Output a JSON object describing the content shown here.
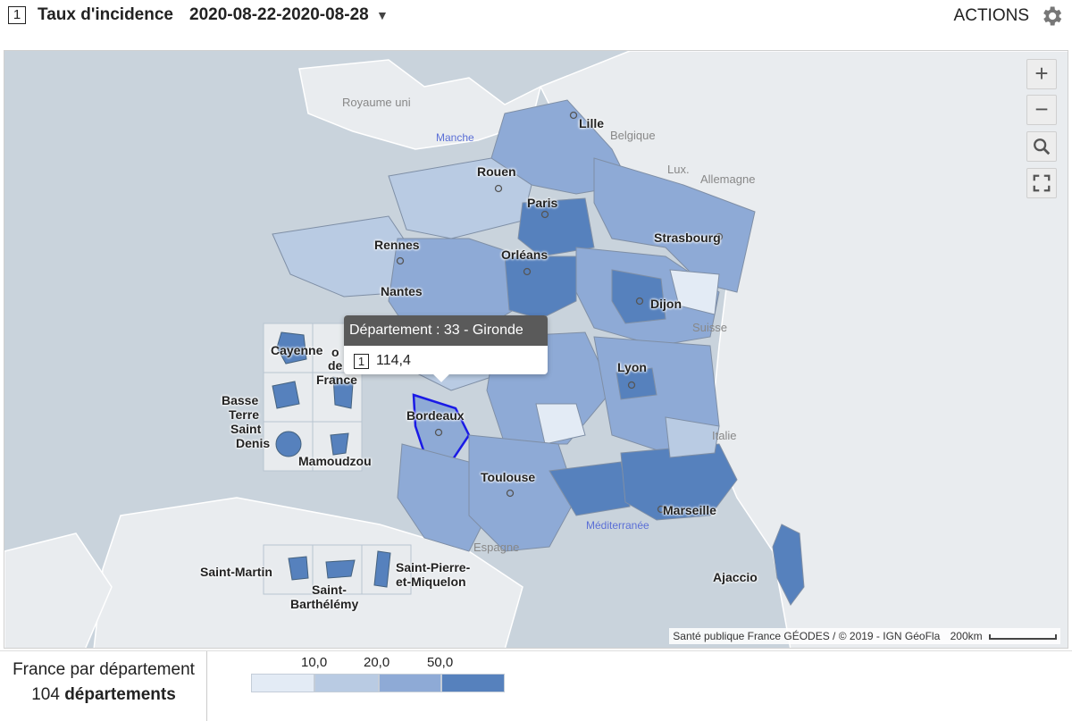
{
  "header": {
    "indicator_index": "1",
    "title": "Taux d'incidence",
    "period": "2020-08-22-2020-08-28",
    "caret": "▼",
    "actions_label": "ACTIONS",
    "actions_icon": "gear-icon"
  },
  "map": {
    "zoom_in": "+",
    "zoom_out": "−",
    "search_icon": "search-icon",
    "fullscreen_icon": "fullscreen-icon",
    "cities": {
      "lille": "Lille",
      "rouen": "Rouen",
      "paris": "Paris",
      "strasbourg": "Strasbourg",
      "rennes": "Rennes",
      "orleans": "Orléans",
      "nantes": "Nantes",
      "dijon": "Dijon",
      "lyon": "Lyon",
      "bordeaux": "Bordeaux",
      "toulouse": "Toulouse",
      "marseille": "Marseille",
      "ajaccio": "Ajaccio"
    },
    "countries": {
      "royaume_uni": "Royaume uni",
      "manche": "Manche",
      "belgique": "Belgique",
      "lux": "Lux.",
      "allemagne": "Allemagne",
      "suisse": "Suisse",
      "italie": "Italie",
      "espagne": "Espagne",
      "mediterranee": "Méditerranée"
    },
    "overseas": {
      "cayenne": "Cayenne",
      "fort_de_france_1": "o",
      "fort_de_france_2": "de",
      "fort_de_france_3": "France",
      "basse_terre_1": "Basse",
      "basse_terre_2": "Terre",
      "saint_denis_1": "Saint",
      "saint_denis_2": "Denis",
      "mamoudzou": "Mamoudzou",
      "saint_martin": "Saint-Martin",
      "saint_barthelemy_1": "Saint-",
      "saint_barthelemy_2": "Barthélémy",
      "saint_pierre_1": "Saint-Pierre-",
      "saint_pierre_2": "et-Miquelon"
    },
    "tooltip": {
      "heading": "Département : 33 - Gironde",
      "index": "1",
      "value": "114,4"
    },
    "attribution": "Santé publique France GÉODES / © 2019 - IGN GéoFla",
    "scale_label": "200km"
  },
  "footer": {
    "scope_label": "France par département",
    "count_number": "104",
    "count_unit": "départements"
  },
  "legend": {
    "thresholds": [
      "10,0",
      "20,0",
      "50,0"
    ],
    "class_colors": [
      "#e3ebf5",
      "#b9cbe3",
      "#8eaad6",
      "#5681bd"
    ]
  },
  "colors": {
    "sea": "#c9d3dc",
    "land_foreign": "#e8ebee",
    "highlight_border": "#1a1ae6"
  }
}
